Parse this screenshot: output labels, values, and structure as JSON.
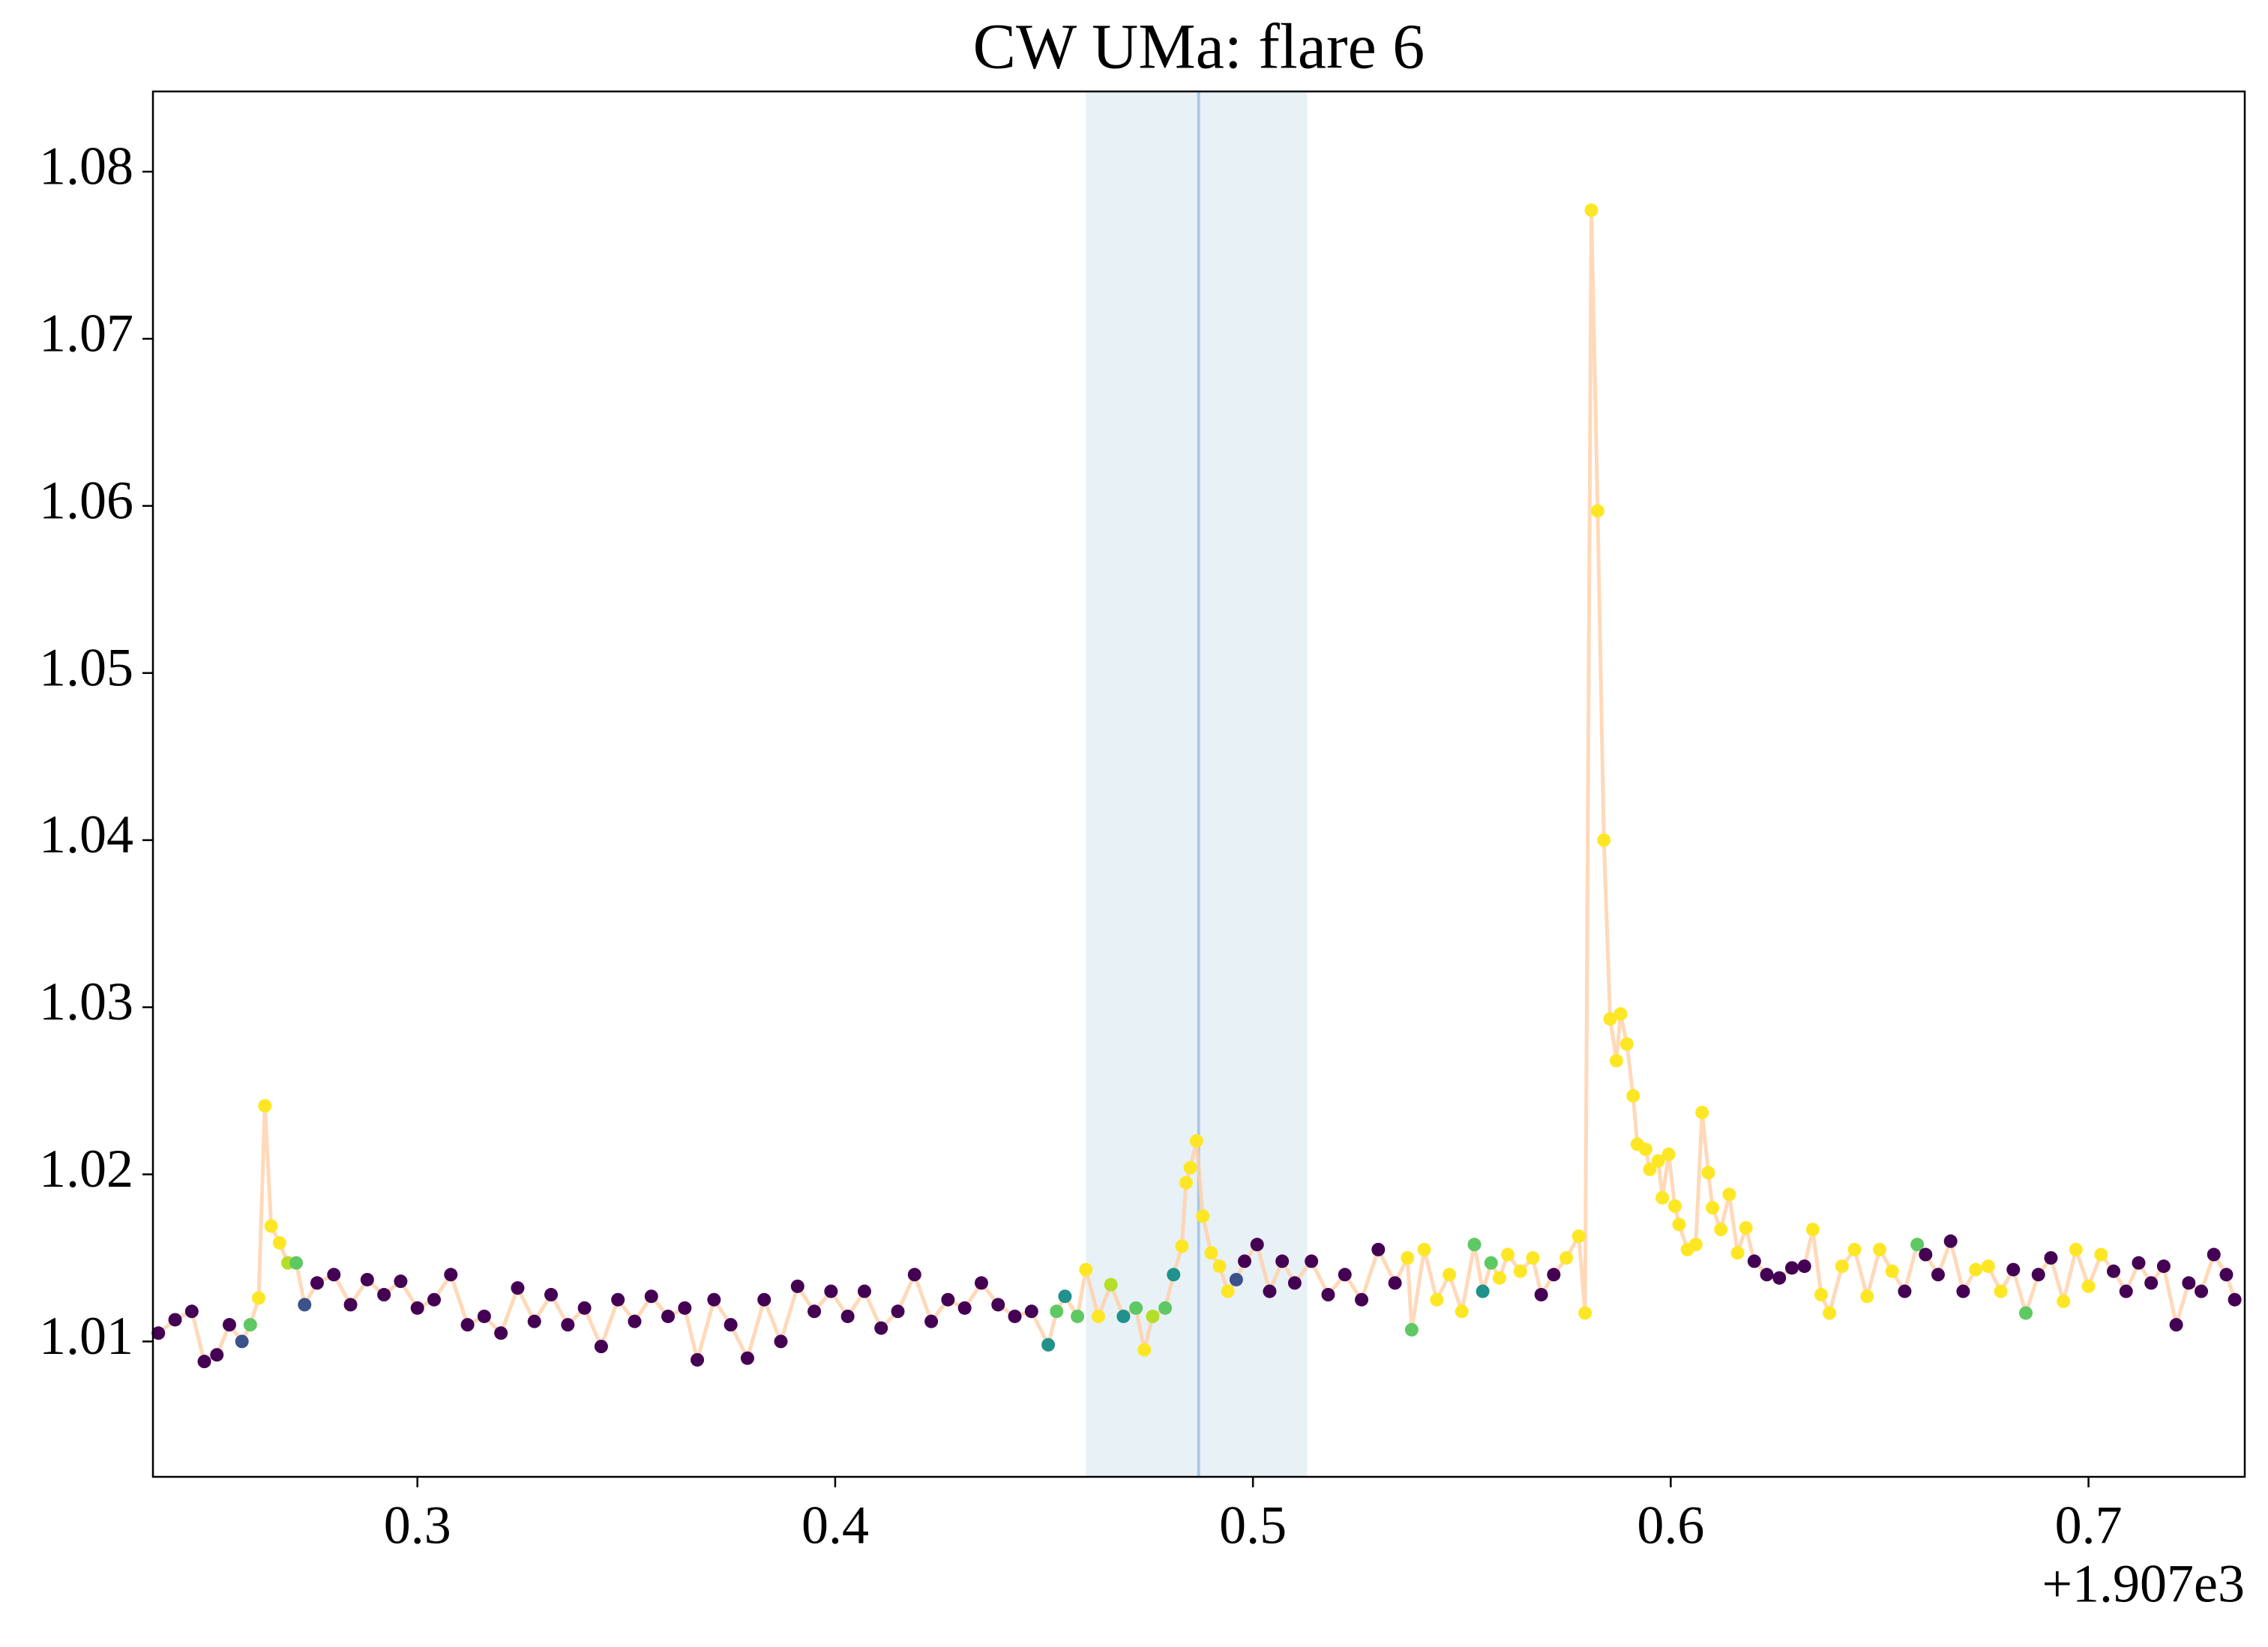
{
  "chart_data": {
    "type": "scatter-line",
    "title": "CW UMa: flare 6",
    "x_offset_label": "+1.907e3",
    "x": [
      0.238,
      0.242,
      0.246,
      0.249,
      0.252,
      0.255,
      0.258,
      0.26,
      0.262,
      0.2635,
      0.265,
      0.267,
      0.269,
      0.271,
      0.273,
      0.276,
      0.28,
      0.284,
      0.288,
      0.292,
      0.296,
      0.3,
      0.304,
      0.308,
      0.312,
      0.316,
      0.32,
      0.324,
      0.328,
      0.332,
      0.336,
      0.34,
      0.344,
      0.348,
      0.352,
      0.356,
      0.36,
      0.364,
      0.367,
      0.371,
      0.375,
      0.379,
      0.383,
      0.387,
      0.391,
      0.395,
      0.399,
      0.403,
      0.407,
      0.411,
      0.415,
      0.419,
      0.423,
      0.427,
      0.431,
      0.435,
      0.439,
      0.443,
      0.447,
      0.451,
      0.453,
      0.455,
      0.458,
      0.46,
      0.463,
      0.466,
      0.469,
      0.472,
      0.474,
      0.476,
      0.479,
      0.481,
      0.483,
      0.484,
      0.485,
      0.4865,
      0.488,
      0.49,
      0.492,
      0.494,
      0.496,
      0.498,
      0.501,
      0.504,
      0.507,
      0.51,
      0.514,
      0.518,
      0.522,
      0.526,
      0.53,
      0.534,
      0.537,
      0.538,
      0.541,
      0.544,
      0.547,
      0.55,
      0.553,
      0.555,
      0.557,
      0.559,
      0.561,
      0.564,
      0.567,
      0.569,
      0.572,
      0.575,
      0.578,
      0.5795,
      0.581,
      0.5825,
      0.584,
      0.5855,
      0.587,
      0.588,
      0.5895,
      0.591,
      0.592,
      0.594,
      0.595,
      0.597,
      0.598,
      0.5995,
      0.601,
      0.602,
      0.604,
      0.606,
      0.6075,
      0.609,
      0.61,
      0.612,
      0.614,
      0.616,
      0.618,
      0.62,
      0.623,
      0.626,
      0.629,
      0.632,
      0.634,
      0.636,
      0.638,
      0.641,
      0.644,
      0.647,
      0.65,
      0.653,
      0.656,
      0.659,
      0.661,
      0.664,
      0.667,
      0.67,
      0.673,
      0.676,
      0.679,
      0.682,
      0.685,
      0.688,
      0.691,
      0.694,
      0.697,
      0.7,
      0.703,
      0.706,
      0.709,
      0.712,
      0.715,
      0.718,
      0.721,
      0.724,
      0.727,
      0.73,
      0.733,
      0.735
    ],
    "values": [
      1.0105,
      1.0113,
      1.0118,
      1.0088,
      1.0092,
      1.011,
      1.01,
      1.011,
      1.0126,
      1.0241,
      1.0169,
      1.0159,
      1.0147,
      1.0147,
      1.0122,
      1.0135,
      1.014,
      1.0122,
      1.0137,
      1.0128,
      1.0136,
      1.012,
      1.0125,
      1.014,
      1.011,
      1.0115,
      1.0105,
      1.0132,
      1.0112,
      1.0128,
      1.011,
      1.012,
      1.0097,
      1.0125,
      1.0112,
      1.0127,
      1.0115,
      1.012,
      1.0089,
      1.0125,
      1.011,
      1.009,
      1.0125,
      1.01,
      1.0133,
      1.0118,
      1.013,
      1.0115,
      1.013,
      1.0108,
      1.0118,
      1.014,
      1.0112,
      1.0125,
      1.012,
      1.0135,
      1.0122,
      1.0115,
      1.0118,
      1.0098,
      1.0118,
      1.0127,
      1.0115,
      1.0143,
      1.0115,
      1.0134,
      1.0115,
      1.012,
      1.0095,
      1.0115,
      1.012,
      1.014,
      1.0157,
      1.0195,
      1.0204,
      1.022,
      1.0175,
      1.0153,
      1.0145,
      1.013,
      1.0137,
      1.0148,
      1.0158,
      1.013,
      1.0148,
      1.0135,
      1.0148,
      1.0128,
      1.014,
      1.0125,
      1.0155,
      1.0135,
      1.015,
      1.0107,
      1.0155,
      1.0125,
      1.014,
      1.0118,
      1.0158,
      1.013,
      1.0147,
      1.0138,
      1.0152,
      1.0142,
      1.015,
      1.0128,
      1.014,
      1.015,
      1.0163,
      1.0117,
      1.0777,
      1.0597,
      1.04,
      1.0293,
      1.0268,
      1.0296,
      1.0278,
      1.0247,
      1.0218,
      1.0215,
      1.0203,
      1.0208,
      1.0186,
      1.0212,
      1.0181,
      1.017,
      1.0155,
      1.0158,
      1.0237,
      1.0201,
      1.018,
      1.0167,
      1.0188,
      1.0153,
      1.0168,
      1.0148,
      1.014,
      1.0138,
      1.0144,
      1.0145,
      1.0167,
      1.0128,
      1.0117,
      1.0145,
      1.0155,
      1.0127,
      1.0155,
      1.0142,
      1.013,
      1.0158,
      1.0152,
      1.014,
      1.016,
      1.013,
      1.0143,
      1.0145,
      1.013,
      1.0143,
      1.0117,
      1.014,
      1.015,
      1.0124,
      1.0155,
      1.0133,
      1.0152,
      1.0142,
      1.013,
      1.0147,
      1.0135,
      1.0145,
      1.011,
      1.0135,
      1.013,
      1.0152,
      1.014,
      1.0125
    ],
    "point_colors": [
      "#440154",
      "#440154",
      "#440154",
      "#440154",
      "#440154",
      "#440154",
      "#3b528b",
      "#5ec962",
      "#fde725",
      "#fde725",
      "#fde725",
      "#fde725",
      "#b5de2b",
      "#5ec962",
      "#3b528b",
      "#440154",
      "#440154",
      "#440154",
      "#440154",
      "#440154",
      "#440154",
      "#440154",
      "#440154",
      "#440154",
      "#440154",
      "#440154",
      "#440154",
      "#440154",
      "#440154",
      "#440154",
      "#440154",
      "#440154",
      "#440154",
      "#440154",
      "#440154",
      "#440154",
      "#440154",
      "#440154",
      "#440154",
      "#440154",
      "#440154",
      "#440154",
      "#440154",
      "#440154",
      "#440154",
      "#440154",
      "#440154",
      "#440154",
      "#440154",
      "#440154",
      "#440154",
      "#440154",
      "#440154",
      "#440154",
      "#440154",
      "#440154",
      "#440154",
      "#440154",
      "#440154",
      "#21918c",
      "#5ec962",
      "#21918c",
      "#5ec962",
      "#fde725",
      "#fde725",
      "#b5de2b",
      "#21918c",
      "#5ec962",
      "#fde725",
      "#b5de2b",
      "#5ec962",
      "#21918c",
      "#fde725",
      "#fde725",
      "#fde725",
      "#fde725",
      "#fde725",
      "#fde725",
      "#fde725",
      "#fde725",
      "#3b528b",
      "#440154",
      "#440154",
      "#440154",
      "#440154",
      "#440154",
      "#440154",
      "#440154",
      "#440154",
      "#440154",
      "#440154",
      "#440154",
      "#fde725",
      "#5ec962",
      "#fde725",
      "#fde725",
      "#fde725",
      "#fde725",
      "#5ec962",
      "#21918c",
      "#5ec962",
      "#fde725",
      "#fde725",
      "#fde725",
      "#fde725",
      "#440154",
      "#440154",
      "#fde725",
      "#fde725",
      "#fde725",
      "#fde725",
      "#fde725",
      "#fde725",
      "#fde725",
      "#fde725",
      "#fde725",
      "#fde725",
      "#fde725",
      "#fde725",
      "#fde725",
      "#fde725",
      "#fde725",
      "#fde725",
      "#fde725",
      "#fde725",
      "#fde725",
      "#fde725",
      "#fde725",
      "#fde725",
      "#fde725",
      "#fde725",
      "#fde725",
      "#fde725",
      "#fde725",
      "#fde725",
      "#440154",
      "#440154",
      "#440154",
      "#440154",
      "#440154",
      "#fde725",
      "#fde725",
      "#fde725",
      "#fde725",
      "#fde725",
      "#fde725",
      "#fde725",
      "#fde725",
      "#440154",
      "#5ec962",
      "#440154",
      "#440154",
      "#440154",
      "#440154",
      "#fde725",
      "#fde725",
      "#fde725",
      "#440154",
      "#5ec962",
      "#440154",
      "#440154",
      "#fde725",
      "#fde725",
      "#fde725",
      "#fde725",
      "#440154",
      "#440154",
      "#440154",
      "#440154",
      "#440154",
      "#440154",
      "#440154",
      "#440154",
      "#440154",
      "#440154",
      "#440154"
    ],
    "line_color": "#ffd0a8",
    "span": [
      0.46,
      0.513
    ],
    "span_color": "#e8f1f6",
    "vline": 0.487,
    "vline_color": "#a9c9e4",
    "xlim": [
      0.2367,
      0.7374
    ],
    "xticks": [
      0.3,
      0.4,
      0.5,
      0.6,
      0.7
    ],
    "ylim": [
      1.0019,
      1.0848
    ],
    "yticks": [
      1.01,
      1.02,
      1.03,
      1.04,
      1.05,
      1.06,
      1.07,
      1.08
    ]
  }
}
